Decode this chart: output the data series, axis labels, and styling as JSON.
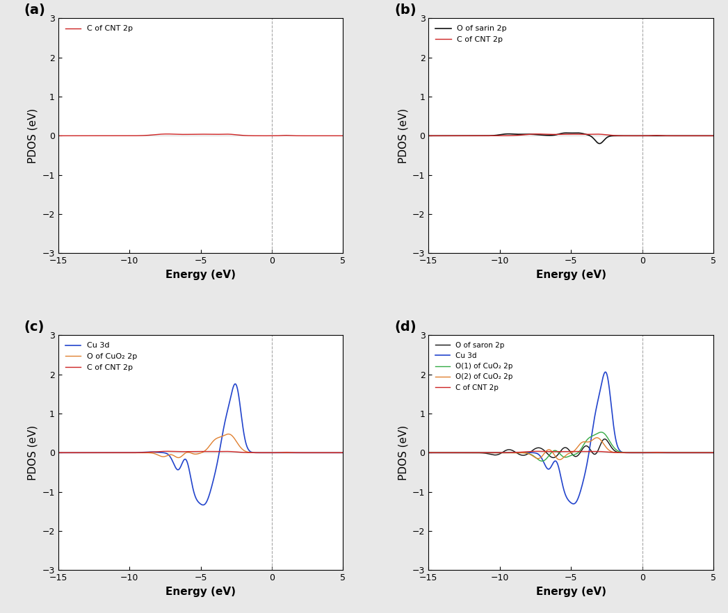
{
  "title": "",
  "xlim": [
    -15,
    5
  ],
  "ylim": [
    -3,
    3
  ],
  "xlabel": "Energy (eV)",
  "ylabel": "PDOS (eV)",
  "xticks": [
    -15,
    -10,
    -5,
    0,
    5
  ],
  "yticks": [
    -3,
    -2,
    -1,
    0,
    1,
    2,
    3
  ],
  "panels": [
    "(a)",
    "(b)",
    "(c)",
    "(d)"
  ],
  "bg_color": "#f0f0f0",
  "vline_x": 0,
  "colors": {
    "red": "#cc2222",
    "black": "#111111",
    "blue": "#2244cc",
    "orange": "#e08030",
    "green": "#33aa44"
  },
  "legend_a": [
    "C of CNT 2p"
  ],
  "legend_b": [
    "O of sarin 2p",
    "C of CNT 2p"
  ],
  "legend_c": [
    "Cu 3d",
    "O of CuO₂ 2p",
    "C of CNT 2p"
  ],
  "legend_d": [
    "O of saron 2p",
    "Cu 3d",
    "O(1) of CuO₂ 2p",
    "O(2) of CuO₂ 2p",
    "C of CNT 2p"
  ]
}
